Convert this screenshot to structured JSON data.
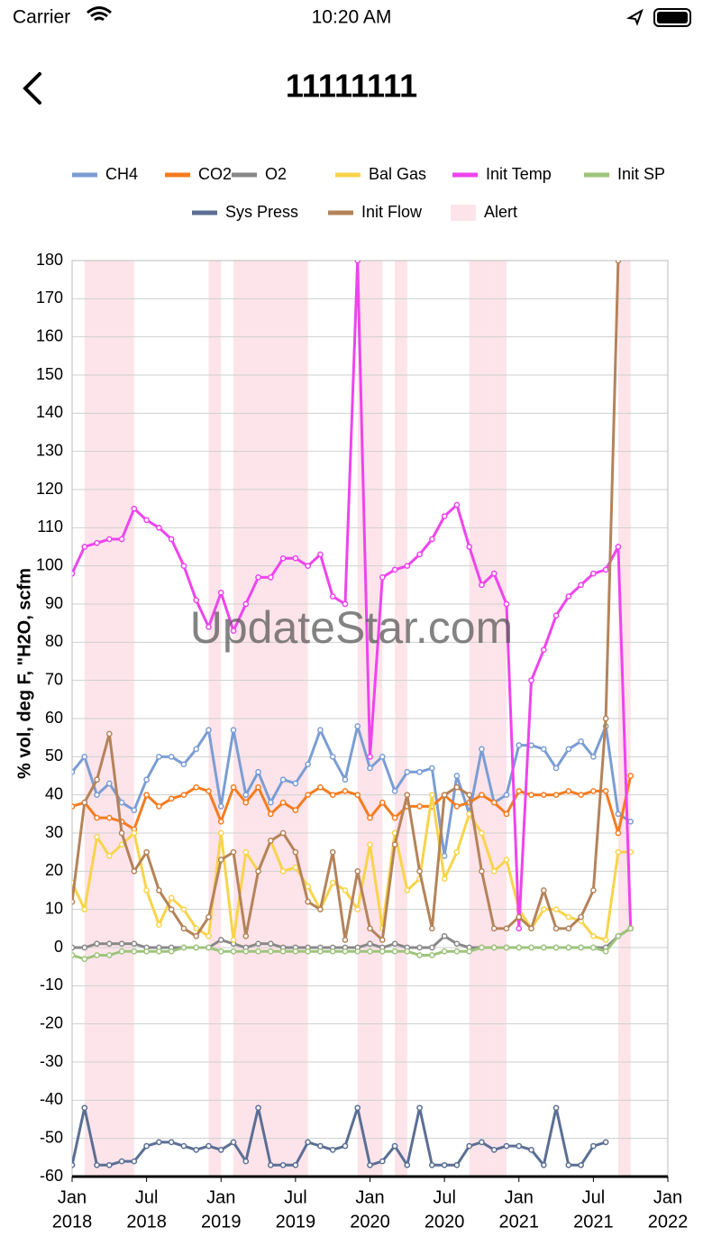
{
  "status_bar": {
    "carrier": "Carrier",
    "time": "10:20 AM"
  },
  "header": {
    "title": "11111111"
  },
  "watermark": "UpdateStar.com",
  "chart_data": {
    "type": "line",
    "ylabel": "% vol, deg F, \"H2O, scfm",
    "ylim": [
      -60,
      180
    ],
    "yticks": [
      -60,
      -50,
      -40,
      -30,
      -20,
      -10,
      0,
      10,
      20,
      30,
      40,
      50,
      60,
      70,
      80,
      90,
      100,
      110,
      120,
      130,
      140,
      150,
      160,
      170,
      180
    ],
    "xlim": [
      "2018-01",
      "2022-01"
    ],
    "xticks": [
      {
        "value": "2018-01",
        "label": [
          "Jan",
          "2018"
        ]
      },
      {
        "value": "2018-07",
        "label": [
          "Jul",
          "2018"
        ]
      },
      {
        "value": "2019-01",
        "label": [
          "Jan",
          "2019"
        ]
      },
      {
        "value": "2019-07",
        "label": [
          "Jul",
          "2019"
        ]
      },
      {
        "value": "2020-01",
        "label": [
          "Jan",
          "2020"
        ]
      },
      {
        "value": "2020-07",
        "label": [
          "Jul",
          "2020"
        ]
      },
      {
        "value": "2021-01",
        "label": [
          "Jan",
          "2021"
        ]
      },
      {
        "value": "2021-07",
        "label": [
          "Jul",
          "2021"
        ]
      },
      {
        "value": "2022-01",
        "label": [
          "Jan",
          "2022"
        ]
      }
    ],
    "grid": true,
    "x": [
      "2018-01",
      "2018-02",
      "2018-03",
      "2018-04",
      "2018-05",
      "2018-06",
      "2018-07",
      "2018-08",
      "2018-09",
      "2018-10",
      "2018-11",
      "2018-12",
      "2019-01",
      "2019-02",
      "2019-03",
      "2019-04",
      "2019-05",
      "2019-06",
      "2019-07",
      "2019-08",
      "2019-09",
      "2019-10",
      "2019-11",
      "2019-12",
      "2020-01",
      "2020-02",
      "2020-03",
      "2020-04",
      "2020-05",
      "2020-06",
      "2020-07",
      "2020-08",
      "2020-09",
      "2020-10",
      "2020-11",
      "2020-12",
      "2021-01",
      "2021-02",
      "2021-03",
      "2021-04",
      "2021-05",
      "2021-06",
      "2021-07",
      "2021-08",
      "2021-09",
      "2021-10"
    ],
    "series": [
      {
        "name": "CH4",
        "color": "#7b9dd4",
        "values": [
          46,
          50,
          40,
          43,
          38,
          36,
          44,
          50,
          50,
          48,
          52,
          57,
          37,
          57,
          40,
          46,
          38,
          44,
          43,
          48,
          57,
          50,
          44,
          58,
          47,
          50,
          41,
          46,
          46,
          47,
          24,
          45,
          35,
          52,
          38,
          40,
          53,
          53,
          52,
          47,
          52,
          54,
          50,
          58,
          35,
          33
        ]
      },
      {
        "name": "CO2",
        "color": "#f57c1f",
        "values": [
          37,
          38,
          34,
          34,
          33,
          31,
          40,
          37,
          39,
          40,
          42,
          41,
          33,
          42,
          38,
          42,
          35,
          38,
          36,
          40,
          42,
          40,
          41,
          40,
          34,
          38,
          34,
          37,
          37,
          37,
          40,
          37,
          38,
          40,
          38,
          35,
          41,
          40,
          40,
          40,
          41,
          40,
          41,
          41,
          30,
          45
        ]
      },
      {
        "name": "O2",
        "color": "#888888",
        "values": [
          0,
          0,
          1,
          1,
          1,
          1,
          0,
          0,
          0,
          0,
          0,
          0,
          2,
          1,
          0,
          1,
          1,
          0,
          0,
          0,
          0,
          0,
          0,
          0,
          1,
          0,
          1,
          0,
          0,
          0,
          3,
          1,
          0,
          0,
          0,
          0,
          0,
          0,
          0,
          0,
          0,
          0,
          0,
          0,
          3,
          5
        ]
      },
      {
        "name": "Bal Gas",
        "color": "#f8d44c",
        "values": [
          17,
          10,
          29,
          24,
          27,
          30,
          15,
          6,
          13,
          10,
          5,
          3,
          30,
          2,
          25,
          20,
          28,
          20,
          21,
          16,
          10,
          17,
          15,
          10,
          27,
          5,
          30,
          15,
          18,
          40,
          18,
          25,
          35,
          30,
          20,
          23,
          10,
          5,
          10,
          10,
          8,
          7,
          3,
          2,
          25,
          25
        ]
      },
      {
        "name": "Init Temp",
        "color": "#ee44ee",
        "values": [
          98,
          105,
          106,
          107,
          107,
          115,
          112,
          110,
          107,
          100,
          91,
          84,
          93,
          83,
          90,
          97,
          97,
          102,
          102,
          100,
          103,
          92,
          90,
          180,
          50,
          97,
          99,
          100,
          103,
          107,
          113,
          116,
          105,
          95,
          98,
          90,
          5,
          70,
          78,
          87,
          92,
          95,
          98,
          99,
          105,
          5
        ]
      },
      {
        "name": "Init SP",
        "color": "#9ec47c",
        "values": [
          -2,
          -3,
          -2,
          -2,
          -1,
          -1,
          -1,
          -1,
          -1,
          0,
          0,
          0,
          -1,
          -1,
          -1,
          -1,
          -1,
          -1,
          -1,
          -1,
          -1,
          -1,
          -1,
          -1,
          -1,
          -1,
          -1,
          -1,
          -2,
          -2,
          -1,
          -1,
          -1,
          0,
          0,
          0,
          0,
          0,
          0,
          0,
          0,
          0,
          0,
          -1,
          3,
          5
        ]
      },
      {
        "name": "Sys Press",
        "color": "#5b6f94",
        "values": [
          -57,
          -42,
          -57,
          -57,
          -56,
          -56,
          -52,
          -51,
          -51,
          -52,
          -53,
          -52,
          -53,
          -51,
          -56,
          -42,
          -57,
          -57,
          -57,
          -51,
          -52,
          -53,
          -52,
          -42,
          -57,
          -56,
          -52,
          -57,
          -42,
          -57,
          -57,
          -57,
          -52,
          -51,
          -53,
          -52,
          -52,
          -53,
          -57,
          -42,
          -57,
          -57,
          -52,
          -51,
          null,
          null
        ]
      },
      {
        "name": "Init Flow",
        "color": "#b5835a",
        "values": [
          12,
          38,
          44,
          56,
          30,
          20,
          25,
          15,
          10,
          5,
          3,
          8,
          23,
          25,
          3,
          20,
          28,
          30,
          25,
          12,
          10,
          25,
          2,
          20,
          5,
          2,
          27,
          40,
          20,
          5,
          40,
          42,
          40,
          20,
          5,
          5,
          8,
          5,
          15,
          5,
          5,
          8,
          15,
          60,
          180,
          null
        ]
      }
    ],
    "alerts": {
      "name": "Alert",
      "color": "#fde4ea",
      "ranges": [
        [
          "2018-02",
          "2018-06"
        ],
        [
          "2018-12",
          "2019-01"
        ],
        [
          "2019-02",
          "2019-08"
        ],
        [
          "2019-12",
          "2020-02"
        ],
        [
          "2020-03",
          "2020-04"
        ],
        [
          "2020-09",
          "2020-11"
        ],
        [
          "2020-11",
          "2020-12"
        ],
        [
          "2021-09",
          "2021-10"
        ]
      ]
    }
  }
}
